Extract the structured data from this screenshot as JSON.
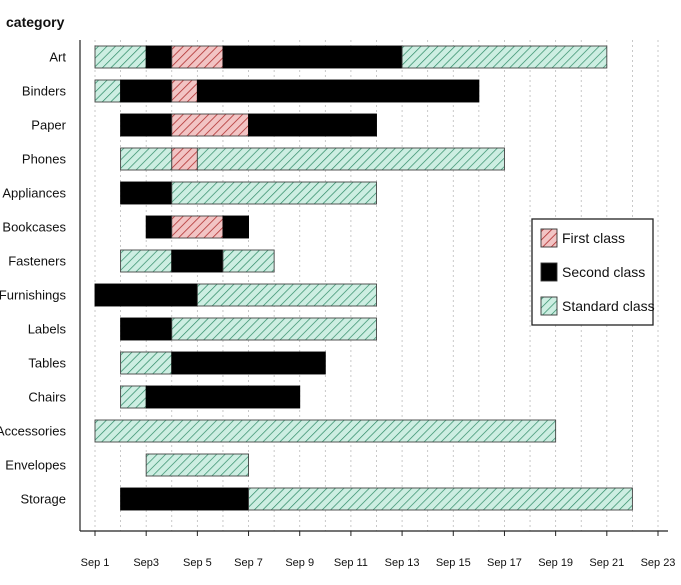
{
  "chart_data": {
    "type": "bar",
    "subtype": "stacked-horizontal-timeline",
    "title": "",
    "ylabel": "category",
    "xlabel": "",
    "x_ticks": [
      "Sep 1",
      "Sep3",
      "Sep 5",
      "Sep 7",
      "Sep 9",
      "Sep 11",
      "Sep 13",
      "Sep 15",
      "Sep 17",
      "Sep 19",
      "Sep 21",
      "Sep 23"
    ],
    "x_tick_days": [
      1,
      3,
      5,
      7,
      9,
      11,
      13,
      15,
      17,
      19,
      21,
      23
    ],
    "xlim": [
      1,
      23
    ],
    "grid": "vertical-dashed",
    "legend_position": "right",
    "series_styles": {
      "First class": {
        "fill": "#f2c4c4",
        "stroke": "#b03030",
        "pattern": "hatch"
      },
      "Second class": {
        "fill": "#000000",
        "stroke": "#000000",
        "pattern": "solid"
      },
      "Standard class": {
        "fill": "#cdeee2",
        "stroke": "#2e8a66",
        "pattern": "hatch"
      }
    },
    "legend": [
      {
        "name": "First class"
      },
      {
        "name": "Second class"
      },
      {
        "name": "Standard class"
      }
    ],
    "categories": [
      {
        "name": "Art",
        "segments": [
          {
            "class": "Standard class",
            "start": 1,
            "end": 3
          },
          {
            "class": "Second class",
            "start": 3,
            "end": 4
          },
          {
            "class": "First class",
            "start": 4,
            "end": 6
          },
          {
            "class": "Second class",
            "start": 6,
            "end": 13
          },
          {
            "class": "Standard class",
            "start": 13,
            "end": 21
          }
        ]
      },
      {
        "name": "Binders",
        "segments": [
          {
            "class": "Standard class",
            "start": 1,
            "end": 2
          },
          {
            "class": "Second class",
            "start": 2,
            "end": 4
          },
          {
            "class": "First class",
            "start": 4,
            "end": 5
          },
          {
            "class": "Second class",
            "start": 5,
            "end": 16
          }
        ]
      },
      {
        "name": "Paper",
        "segments": [
          {
            "class": "Second class",
            "start": 2,
            "end": 4
          },
          {
            "class": "First class",
            "start": 4,
            "end": 7
          },
          {
            "class": "Second class",
            "start": 7,
            "end": 12
          }
        ]
      },
      {
        "name": "Phones",
        "segments": [
          {
            "class": "Standard class",
            "start": 2,
            "end": 4
          },
          {
            "class": "First class",
            "start": 4,
            "end": 5
          },
          {
            "class": "Standard class",
            "start": 5,
            "end": 17
          }
        ]
      },
      {
        "name": "Appliances",
        "segments": [
          {
            "class": "Second class",
            "start": 2,
            "end": 4
          },
          {
            "class": "Standard class",
            "start": 4,
            "end": 12
          }
        ]
      },
      {
        "name": "Bookcases",
        "segments": [
          {
            "class": "Second class",
            "start": 3,
            "end": 4
          },
          {
            "class": "First class",
            "start": 4,
            "end": 6
          },
          {
            "class": "Second class",
            "start": 6,
            "end": 7
          }
        ]
      },
      {
        "name": "Fasteners",
        "segments": [
          {
            "class": "Standard class",
            "start": 2,
            "end": 4
          },
          {
            "class": "Second class",
            "start": 4,
            "end": 6
          },
          {
            "class": "Standard class",
            "start": 6,
            "end": 8
          }
        ]
      },
      {
        "name": "Furnishings",
        "segments": [
          {
            "class": "Second class",
            "start": 1,
            "end": 5
          },
          {
            "class": "Standard class",
            "start": 5,
            "end": 12
          }
        ]
      },
      {
        "name": "Labels",
        "segments": [
          {
            "class": "Second class",
            "start": 2,
            "end": 4
          },
          {
            "class": "Standard class",
            "start": 4,
            "end": 12
          }
        ]
      },
      {
        "name": "Tables",
        "segments": [
          {
            "class": "Standard class",
            "start": 2,
            "end": 4
          },
          {
            "class": "Second class",
            "start": 4,
            "end": 10
          }
        ]
      },
      {
        "name": "Chairs",
        "segments": [
          {
            "class": "Standard class",
            "start": 2,
            "end": 3
          },
          {
            "class": "Second class",
            "start": 3,
            "end": 9
          }
        ]
      },
      {
        "name": "Accessories",
        "segments": [
          {
            "class": "Standard class",
            "start": 1,
            "end": 19
          }
        ]
      },
      {
        "name": "Envelopes",
        "segments": [
          {
            "class": "Standard class",
            "start": 3,
            "end": 7
          }
        ]
      },
      {
        "name": "Storage",
        "segments": [
          {
            "class": "Second class",
            "start": 2,
            "end": 7
          },
          {
            "class": "Standard class",
            "start": 7,
            "end": 22
          }
        ]
      }
    ]
  }
}
